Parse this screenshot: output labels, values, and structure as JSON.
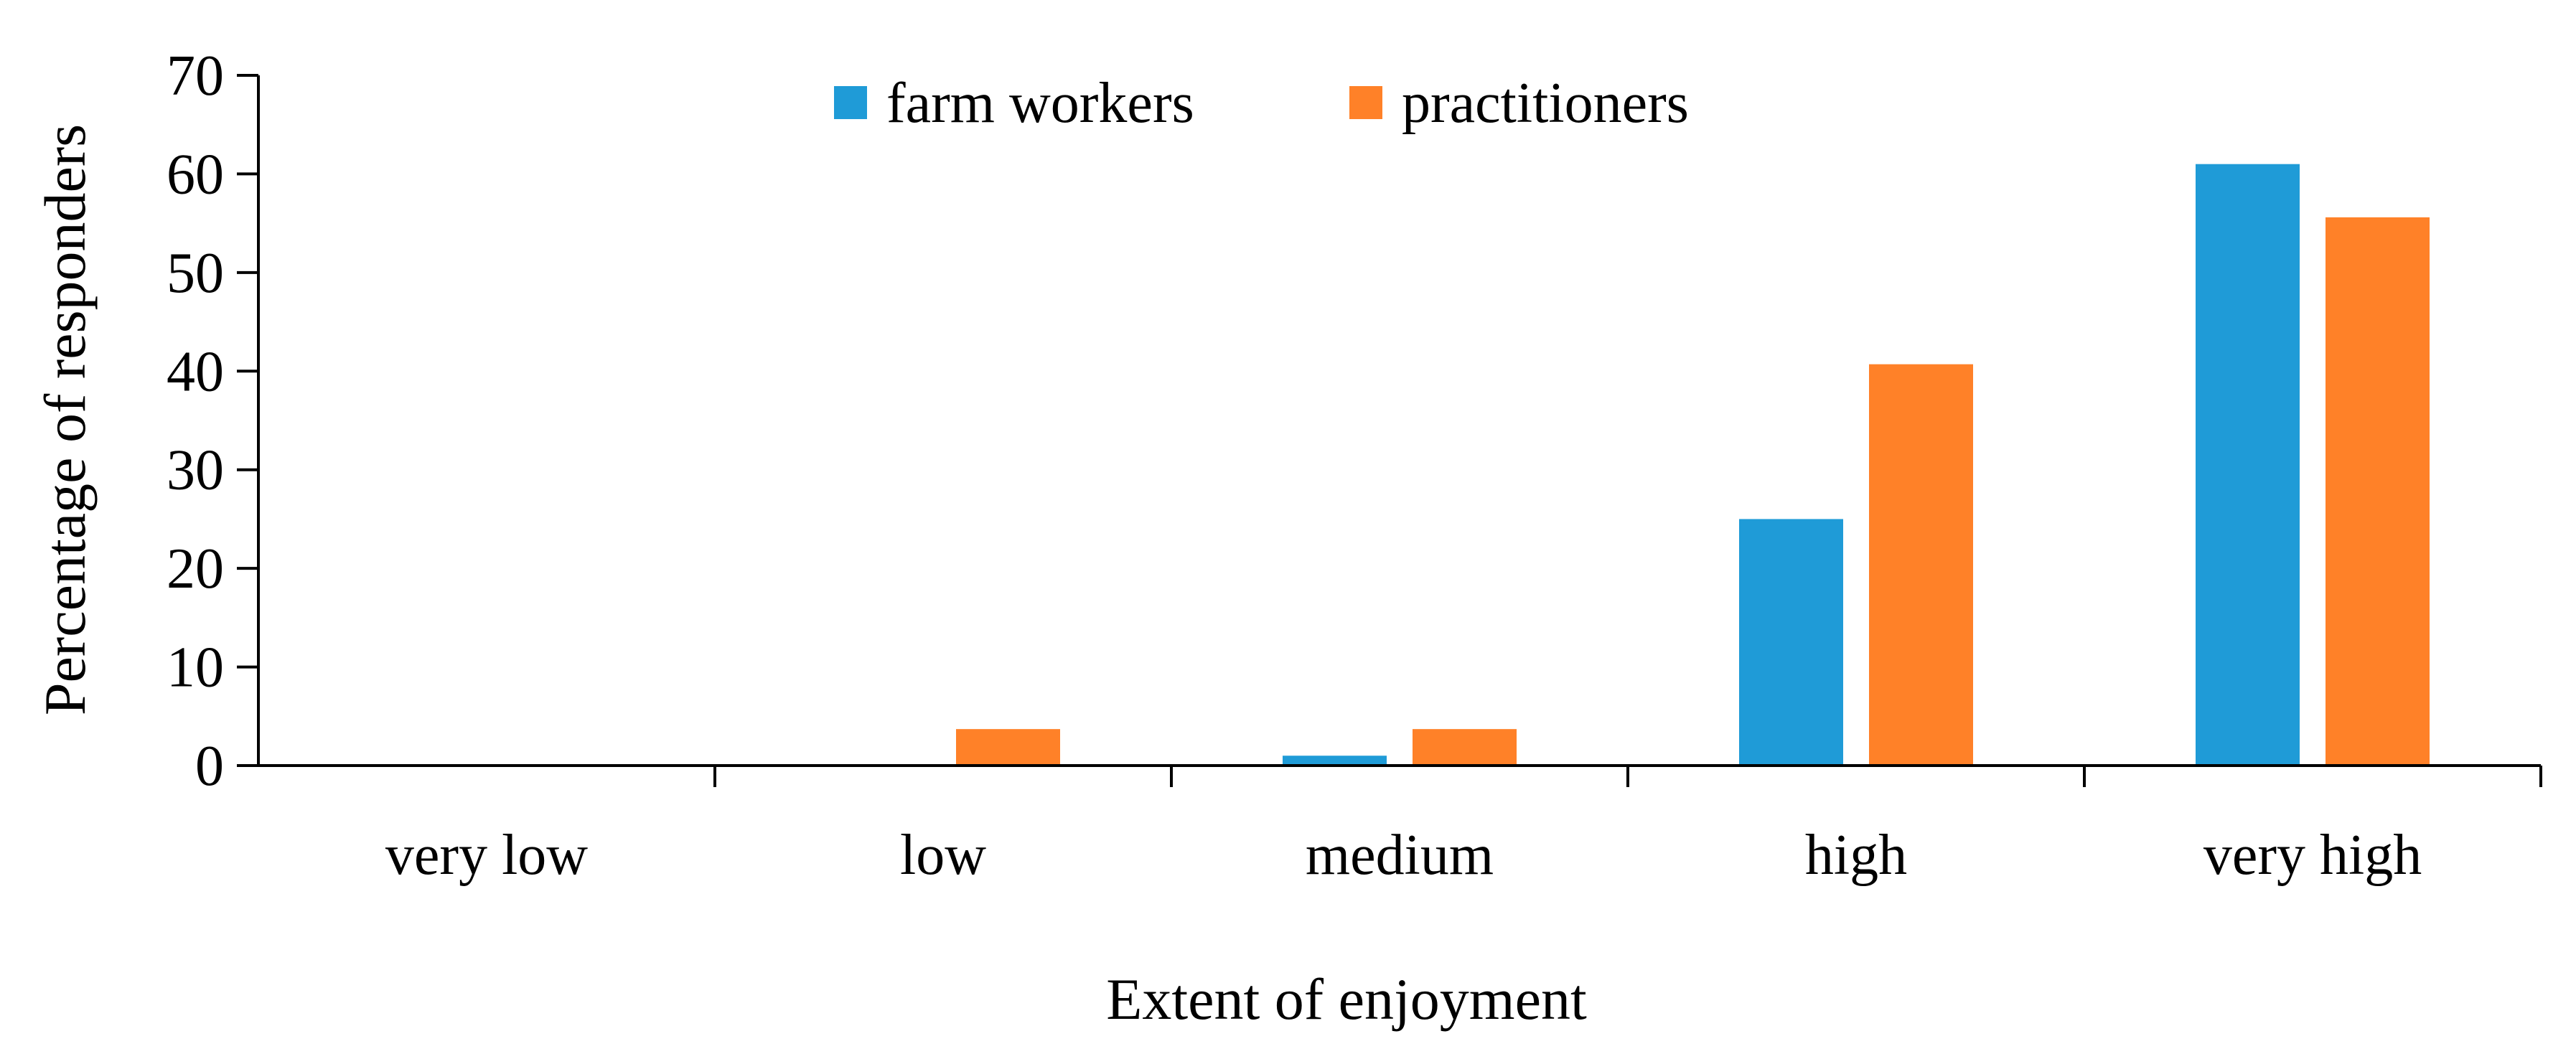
{
  "chart_data": {
    "type": "bar",
    "title": "",
    "xlabel": "Extent of enjoyment",
    "ylabel": "Percentage of responders",
    "categories": [
      "very low",
      "low",
      "medium",
      "high",
      "very high"
    ],
    "series": [
      {
        "name": "farm workers",
        "color": "#1F9BD7",
        "values": [
          0,
          0,
          1,
          25,
          61
        ]
      },
      {
        "name": "practitioners",
        "color": "#FF8128",
        "values": [
          0,
          3.7,
          3.7,
          40.7,
          55.6
        ]
      }
    ],
    "ylim": [
      0,
      70
    ],
    "yticks": [
      0,
      10,
      20,
      30,
      40,
      50,
      60,
      70
    ],
    "grid": false,
    "legend_position": "top-center"
  }
}
